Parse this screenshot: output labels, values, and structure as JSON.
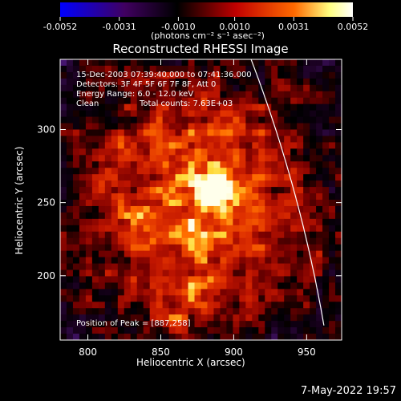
{
  "colorbar": {
    "ticks": [
      "-0.0052",
      "-0.0031",
      "-0.0010",
      "0.0010",
      "0.0031",
      "0.0052"
    ],
    "tick_values": [
      -0.0052,
      -0.0031,
      -0.001,
      0.001,
      0.0031,
      0.0052
    ],
    "units_label": "(photons cm⁻² s⁻¹ asec⁻²)",
    "colors": [
      "#0000ff",
      "#400060",
      "#000000",
      "#c00000",
      "#ff6a00",
      "#ffff80",
      "#ffffff"
    ]
  },
  "chart_data": {
    "type": "heatmap",
    "title": "Reconstructed RHESSI Image",
    "xlabel": "Heliocentric X (arcsec)",
    "ylabel": "Heliocentric Y (arcsec)",
    "xlim": [
      781,
      974
    ],
    "ylim": [
      156,
      348
    ],
    "xticks": [
      800,
      850,
      900,
      950
    ],
    "yticks": [
      200,
      250,
      300
    ],
    "info": {
      "time_range": "15-Dec-2003 07:39:40.000 to 07:41:36.000",
      "detectors": "Detectors: 3F 4F 5F 6F 7F 8F, Att 0",
      "energy": "Energy Range: 6.0 - 12.0 keV",
      "method": "Clean",
      "total_counts": "Total counts: 7.63E+03"
    },
    "peak": {
      "label": "Position of Peak = [887,258]",
      "x": 887,
      "y": 258
    },
    "limb": {
      "color": "#ffffff"
    }
  },
  "footer": {
    "date": "7-May-2022 19:57"
  }
}
